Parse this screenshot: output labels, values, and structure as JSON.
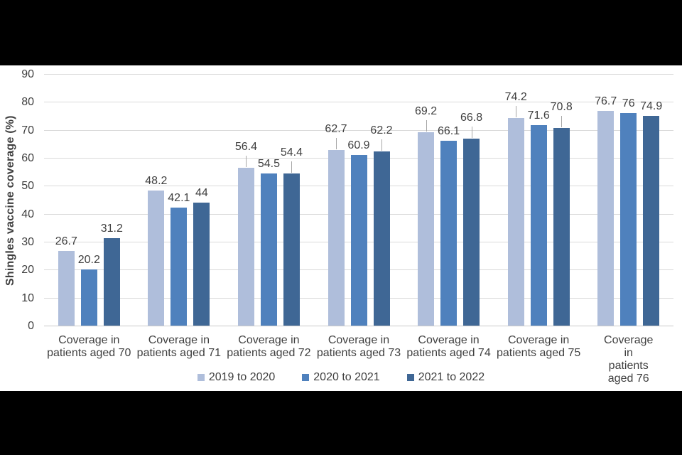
{
  "page": {
    "letterbox_color": "#000000",
    "panel_color": "#ffffff"
  },
  "chart_data": {
    "type": "bar",
    "title": "",
    "xlabel": "",
    "ylabel": "Shingles vaccine coverage (%)",
    "ylim": [
      0,
      90
    ],
    "yticks": [
      0,
      10,
      20,
      30,
      40,
      50,
      60,
      70,
      80,
      90
    ],
    "grid": true,
    "legend_position": "bottom",
    "categories": [
      [
        "Coverage in",
        "patients aged 70"
      ],
      [
        "Coverage in",
        "patients aged 71"
      ],
      [
        "Coverage in",
        "patients aged 72"
      ],
      [
        "Coverage in",
        "patients aged 73"
      ],
      [
        "Coverage in",
        "patients aged 74"
      ],
      [
        "Coverage in",
        "patients aged 75"
      ],
      [
        "Coverage in",
        "patients aged 76"
      ]
    ],
    "series": [
      {
        "name": "2019 to 2020",
        "color": "#afbedb",
        "values": [
          26.7,
          48.2,
          56.4,
          62.7,
          69.2,
          74.2,
          76.7
        ],
        "raised_labels": [
          false,
          false,
          true,
          true,
          true,
          true,
          false
        ]
      },
      {
        "name": "2020 to 2021",
        "color": "#4f81bd",
        "values": [
          20.2,
          42.1,
          54.5,
          60.9,
          66.1,
          71.6,
          76
        ],
        "raised_labels": [
          false,
          false,
          false,
          false,
          false,
          false,
          false
        ]
      },
      {
        "name": "2021 to 2022",
        "color": "#3f6795",
        "values": [
          31.2,
          44,
          54.4,
          62.2,
          66.8,
          70.8,
          74.9
        ],
        "raised_labels": [
          false,
          false,
          true,
          true,
          true,
          true,
          false
        ]
      }
    ],
    "colors": {
      "grid": "#d9d9d9",
      "axis": "#c9c9c9",
      "text": "#3f3f3f",
      "leader": "#a6a6a6"
    }
  }
}
